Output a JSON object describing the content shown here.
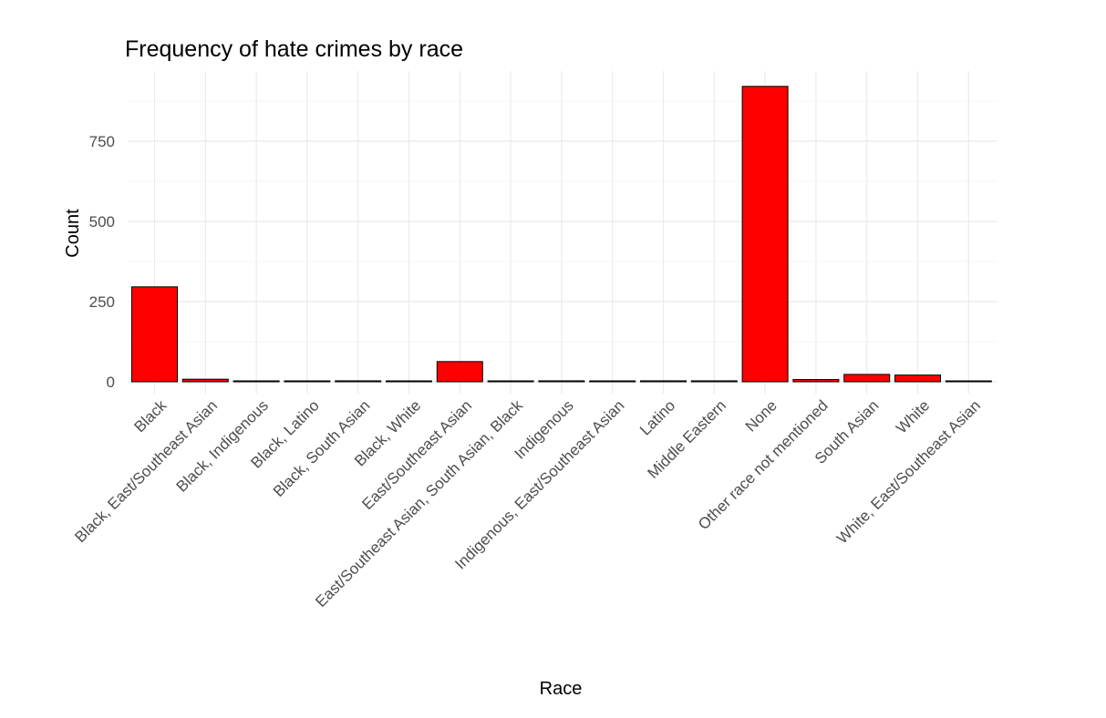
{
  "chart_data": {
    "type": "bar",
    "title": "Frequency of hate crimes by race",
    "xlabel": "Race",
    "ylabel": "Count",
    "categories": [
      "Black",
      "Black, East/Southeast Asian",
      "Black, Indigenous",
      "Black, Latino",
      "Black, South Asian",
      "Black, White",
      "East/Southeast Asian",
      "East/Southeast Asian, South Asian, Black",
      "Indigenous",
      "Indigenous, East/Southeast Asian",
      "Latino",
      "Middle Eastern",
      "None",
      "Other race not mentioned",
      "South Asian",
      "White",
      "White, East/Southeast Asian"
    ],
    "values": [
      296,
      8,
      1,
      1,
      3,
      1,
      63,
      1,
      3,
      1,
      3,
      3,
      921,
      7,
      23,
      21,
      1
    ],
    "ylim": [
      0,
      921
    ],
    "y_ticks": [
      0,
      250,
      500,
      750
    ],
    "grid": true,
    "bar_fill": "#ff0000",
    "bar_stroke": "#000000"
  }
}
